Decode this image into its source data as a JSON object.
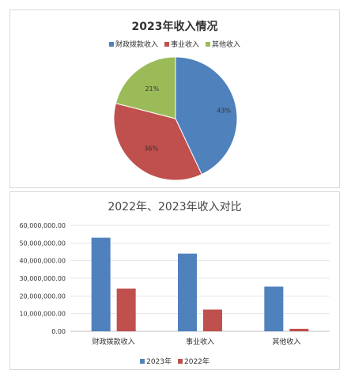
{
  "chart_data": [
    {
      "type": "pie",
      "title": "2023年收入情况",
      "categories": [
        "财政拨款收入",
        "事业收入",
        "其他收入"
      ],
      "values": [
        43,
        36,
        21
      ],
      "data_labels": [
        "43%",
        "36%",
        "21%"
      ],
      "colors": [
        "#4f81bd",
        "#c0504d",
        "#9bbb59"
      ],
      "legend_position": "top"
    },
    {
      "type": "bar",
      "title": "2022年、2023年收入对比",
      "categories": [
        "财政拨款收入",
        "事业收入",
        "其他收入"
      ],
      "series": [
        {
          "name": "2023年",
          "values": [
            53000000,
            44000000,
            25300000
          ],
          "color": "#4f81bd"
        },
        {
          "name": "2022年",
          "values": [
            24200000,
            12300000,
            1400000
          ],
          "color": "#c0504d"
        }
      ],
      "ylim": [
        0,
        60000000
      ],
      "yticks": [
        "0.00",
        "10,000,000.00",
        "20,000,000.00",
        "30,000,000.00",
        "40,000,000.00",
        "50,000,000.00",
        "60,000,000.00"
      ],
      "grid": true,
      "legend_position": "bottom"
    }
  ]
}
